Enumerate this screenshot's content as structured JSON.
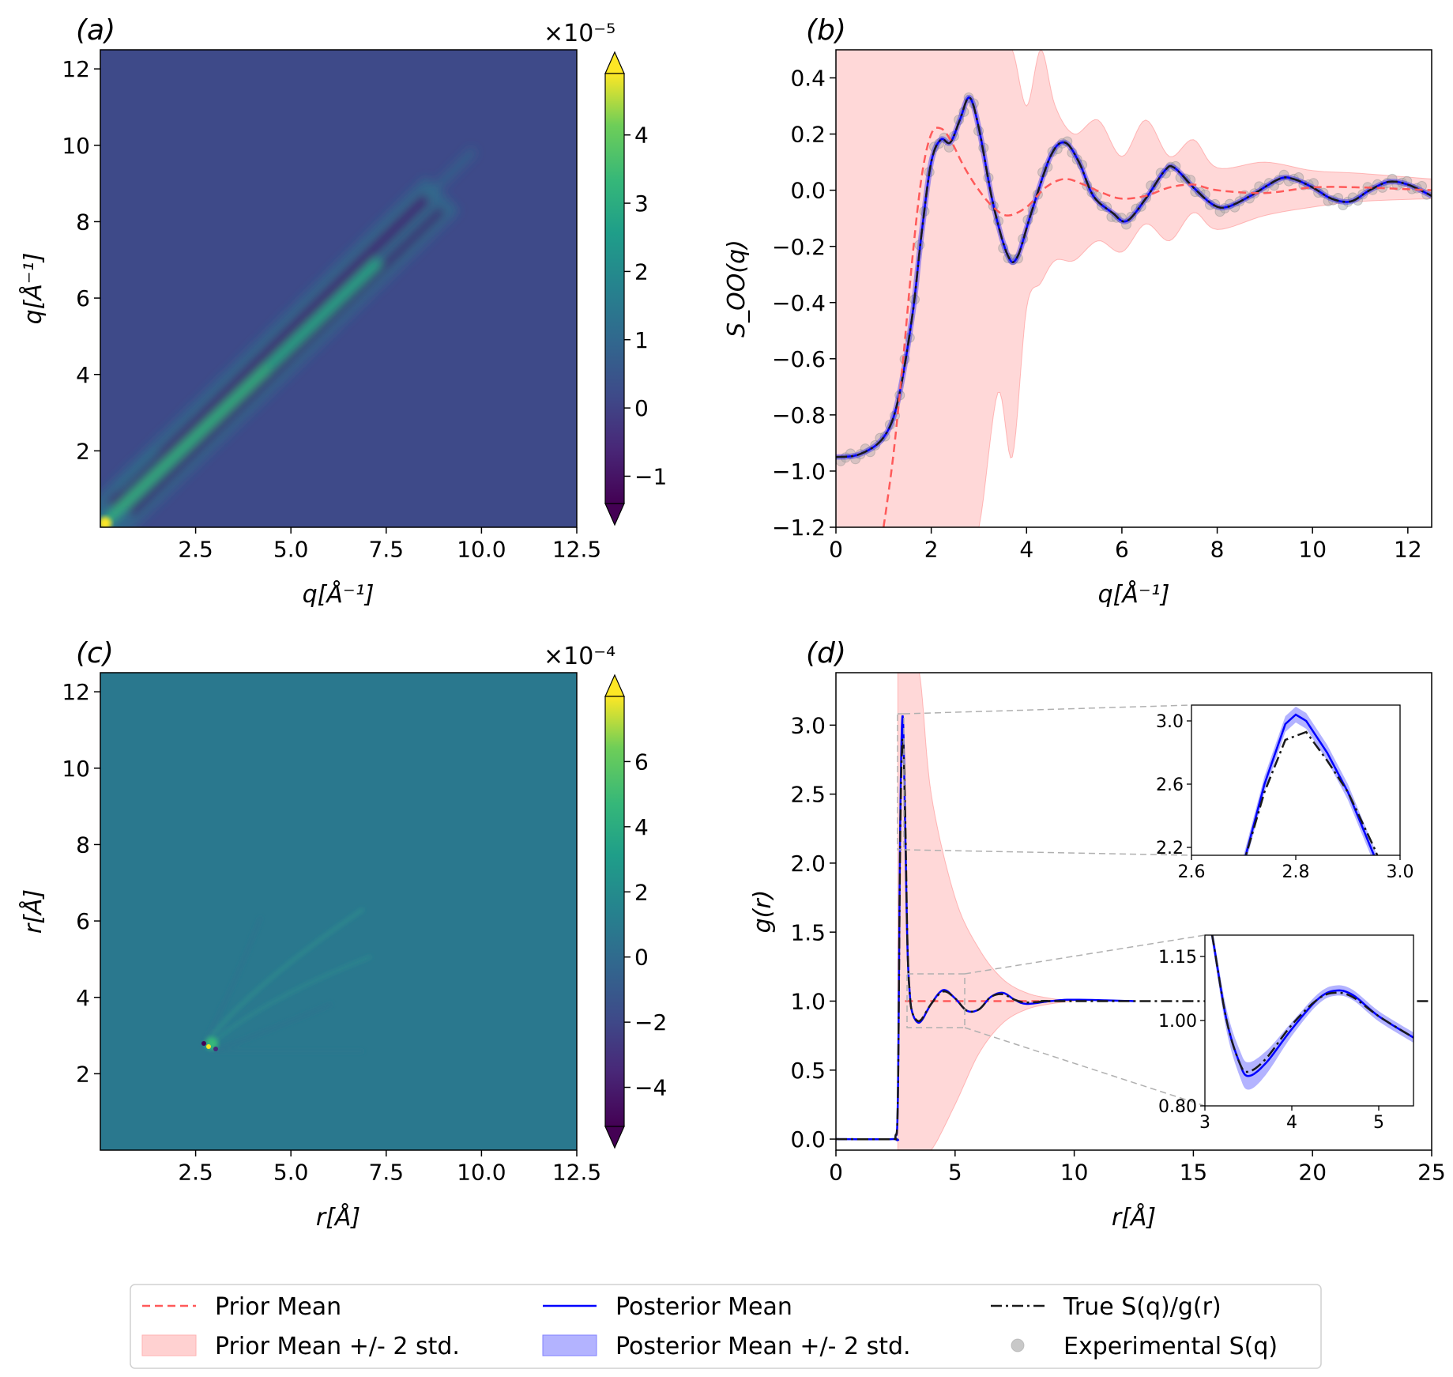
{
  "figure": {
    "legend": {
      "entries": [
        {
          "label": "Prior Mean",
          "style": "dashed-line",
          "color": "#ff5a5a"
        },
        {
          "label": "Prior Mean +/- 2 std.",
          "style": "patch",
          "color": "#ffb3b3"
        },
        {
          "label": "Posterior Mean",
          "style": "solid-line",
          "color": "#0000ff"
        },
        {
          "label": "Posterior Mean +/- 2 std.",
          "style": "patch",
          "color": "#8080ff"
        },
        {
          "label": "True S(q)/g(r)",
          "style": "dashdot-line",
          "color": "#1a1a1a"
        },
        {
          "label": "Experimental S(q)",
          "style": "marker",
          "color": "#c8c8c8"
        }
      ],
      "placement": "bottom-center"
    }
  },
  "chart_data": [
    {
      "id": "a",
      "type": "heatmap",
      "panel_label": "(a)",
      "xlabel": "q[Å⁻¹]",
      "ylabel": "q[Å⁻¹]",
      "xlim": [
        0,
        12.5
      ],
      "ylim": [
        0,
        12.5
      ],
      "xticks": [
        "2.5",
        "5.0",
        "7.5",
        "10.0",
        "12.5"
      ],
      "yticks": [
        "2",
        "4",
        "6",
        "8",
        "10",
        "12"
      ],
      "colorbar": {
        "scale_label": "×10⁻⁵",
        "ticks": [
          "−1",
          "0",
          "1",
          "2",
          "3",
          "4"
        ],
        "range": [
          -1.4,
          4.9
        ],
        "colormap": "viridis",
        "extend": "both"
      },
      "description_values": "covariance concentrated along the diagonal q=q', maximum near origin (~4.8e-5), negative side bands (~-1e-5)"
    },
    {
      "id": "b",
      "type": "line",
      "panel_label": "(b)",
      "xlabel": "q[Å⁻¹]",
      "ylabel": "S_OO(q)",
      "xlim": [
        0,
        12.5
      ],
      "ylim": [
        -1.2,
        0.5
      ],
      "xticks": [
        "0",
        "2",
        "4",
        "6",
        "8",
        "10",
        "12"
      ],
      "yticks": [
        "−1.2",
        "−1.0",
        "−0.8",
        "−0.6",
        "−0.4",
        "−0.2",
        "0.0",
        "0.2",
        "0.4"
      ],
      "series": [
        {
          "name": "Posterior Mean",
          "x": [
            0,
            0.5,
            1.0,
            1.3,
            1.6,
            1.8,
            2.0,
            2.2,
            2.4,
            2.6,
            2.8,
            3.0,
            3.3,
            3.6,
            3.8,
            4.1,
            4.5,
            4.8,
            5.1,
            5.4,
            5.8,
            6.1,
            6.5,
            6.9,
            7.1,
            7.5,
            7.9,
            8.2,
            8.7,
            9.3,
            9.6,
            10.0,
            10.4,
            10.8,
            11.2,
            11.6,
            12.0,
            12.5
          ],
          "y": [
            -0.95,
            -0.94,
            -0.88,
            -0.75,
            -0.45,
            -0.15,
            0.1,
            0.18,
            0.17,
            0.25,
            0.33,
            0.22,
            -0.05,
            -0.23,
            -0.24,
            -0.08,
            0.12,
            0.17,
            0.1,
            -0.02,
            -0.08,
            -0.11,
            -0.03,
            0.07,
            0.08,
            0.01,
            -0.05,
            -0.06,
            -0.02,
            0.04,
            0.04,
            0.01,
            -0.03,
            -0.04,
            0.0,
            0.03,
            0.02,
            -0.02
          ]
        },
        {
          "name": "Prior Mean",
          "x": [
            1.0,
            1.2,
            1.4,
            1.6,
            1.8,
            2.0,
            2.2,
            2.4,
            2.7,
            3.0,
            3.3,
            3.6,
            4.0,
            4.4,
            4.8,
            5.2,
            5.6,
            6.0,
            6.5,
            7.0,
            7.5,
            8.0,
            9.0,
            10.0,
            11.0,
            12.5
          ],
          "y": [
            -1.2,
            -0.95,
            -0.62,
            -0.25,
            0.05,
            0.2,
            0.22,
            0.18,
            0.08,
            0.0,
            -0.06,
            -0.09,
            -0.06,
            0.01,
            0.04,
            0.02,
            -0.01,
            -0.03,
            -0.02,
            0.01,
            0.02,
            0.0,
            -0.01,
            0.01,
            0.01,
            0.0
          ]
        },
        {
          "name": "Prior Mean +/- 2 std.",
          "x": [
            0,
            1.0,
            2.0,
            2.5,
            2.7,
            3.0,
            3.4,
            3.7,
            4.0,
            4.3,
            4.6,
            5.0,
            5.5,
            6.0,
            6.5,
            7.0,
            7.5,
            8.0,
            9.0,
            10.0,
            11.0,
            12.5
          ],
          "upper": [
            0.5,
            0.5,
            0.5,
            0.5,
            0.5,
            0.5,
            0.5,
            0.5,
            0.3,
            0.5,
            0.3,
            0.2,
            0.25,
            0.12,
            0.25,
            0.12,
            0.18,
            0.08,
            0.1,
            0.07,
            0.06,
            0.04
          ],
          "lower": [
            -1.2,
            -1.2,
            -1.2,
            -1.2,
            -1.2,
            -1.2,
            -0.72,
            -0.95,
            -0.42,
            -0.33,
            -0.25,
            -0.25,
            -0.18,
            -0.22,
            -0.12,
            -0.18,
            -0.08,
            -0.14,
            -0.09,
            -0.06,
            -0.04,
            -0.03
          ]
        }
      ],
      "scatter": {
        "name": "Experimental S(q)",
        "count": 120
      }
    },
    {
      "id": "c",
      "type": "heatmap",
      "panel_label": "(c)",
      "xlabel": "r[Å]",
      "ylabel": "r[Å]",
      "xlim": [
        0,
        12.5
      ],
      "ylim": [
        0,
        12.5
      ],
      "xticks": [
        "2.5",
        "5.0",
        "7.5",
        "10.0",
        "12.5"
      ],
      "yticks": [
        "2",
        "4",
        "6",
        "8",
        "10",
        "12"
      ],
      "colorbar": {
        "scale_label": "×10⁻⁴",
        "ticks": [
          "−4",
          "−2",
          "0",
          "2",
          "4",
          "6"
        ],
        "range": [
          -5.2,
          8.0
        ],
        "colormap": "viridis",
        "extend": "both"
      },
      "description_values": "nearly uniform (~0); sharp peak near r=r'=2.8 Å with faint streaks extending toward (7, 6)"
    },
    {
      "id": "d",
      "type": "line",
      "panel_label": "(d)",
      "xlabel": "r[Å]",
      "ylabel": "g(r)",
      "xlim": [
        0,
        25
      ],
      "ylim": [
        -0.08,
        3.38
      ],
      "xticks": [
        "0",
        "5",
        "10",
        "15",
        "20",
        "25"
      ],
      "yticks": [
        "0.0",
        "0.5",
        "1.0",
        "1.5",
        "2.0",
        "2.5",
        "3.0"
      ],
      "series": [
        {
          "name": "Posterior Mean",
          "x": [
            0,
            2.4,
            2.5,
            2.6,
            2.7,
            2.8,
            2.9,
            3.0,
            3.1,
            3.2,
            3.4,
            3.6,
            4.0,
            4.5,
            5.0,
            5.5,
            6.0,
            6.5,
            7.0,
            7.5,
            8.0,
            9.0,
            10.0,
            12.5
          ],
          "y": [
            0,
            0,
            0.02,
            0.3,
            2.3,
            3.07,
            2.3,
            1.4,
            1.05,
            0.92,
            0.85,
            0.86,
            0.98,
            1.08,
            1.02,
            0.93,
            0.94,
            1.03,
            1.06,
            1.01,
            0.98,
            1.0,
            1.01,
            1.0
          ]
        },
        {
          "name": "True S(q)/g(r)",
          "x": [
            0,
            2.4,
            2.5,
            2.6,
            2.7,
            2.8,
            2.9,
            3.0,
            3.1,
            3.2,
            3.4,
            3.6,
            4.0,
            4.5,
            5.0,
            5.5,
            6.0,
            6.5,
            7.0,
            7.5,
            8.0,
            9.0,
            10.0,
            25.0
          ],
          "y": [
            0,
            0,
            0.02,
            0.3,
            2.2,
            2.9,
            2.4,
            1.42,
            1.05,
            0.92,
            0.86,
            0.87,
            0.98,
            1.07,
            1.02,
            0.93,
            0.94,
            1.03,
            1.05,
            1.01,
            0.99,
            1.0,
            1.0,
            1.0
          ]
        },
        {
          "name": "Prior Mean",
          "x": [
            2.9,
            9.0
          ],
          "y": [
            1.0,
            1.0
          ]
        },
        {
          "name": "Prior Mean +/- 2 std.",
          "x": [
            2.6,
            3.0,
            3.5,
            4.0,
            5.0,
            6.0,
            7.0,
            8.0,
            9.0,
            10.0
          ],
          "upper": [
            3.38,
            3.38,
            3.38,
            2.5,
            1.75,
            1.38,
            1.16,
            1.06,
            1.02,
            1.0
          ],
          "lower": [
            -0.08,
            -0.08,
            -0.08,
            -0.08,
            0.25,
            0.62,
            0.84,
            0.94,
            0.98,
            1.0
          ]
        }
      ],
      "insets": [
        {
          "xlim": [
            2.6,
            3.0
          ],
          "ylim": [
            2.15,
            3.1
          ],
          "xticks": [
            "2.6",
            "2.8",
            "3.0"
          ],
          "yticks": [
            "2.2",
            "2.6",
            "3.0"
          ]
        },
        {
          "xlim": [
            3.0,
            5.4
          ],
          "ylim": [
            0.8,
            1.2
          ],
          "xticks": [
            "3",
            "4",
            "5"
          ],
          "yticks": [
            "0.80",
            "1.00",
            "1.15"
          ]
        }
      ]
    }
  ]
}
